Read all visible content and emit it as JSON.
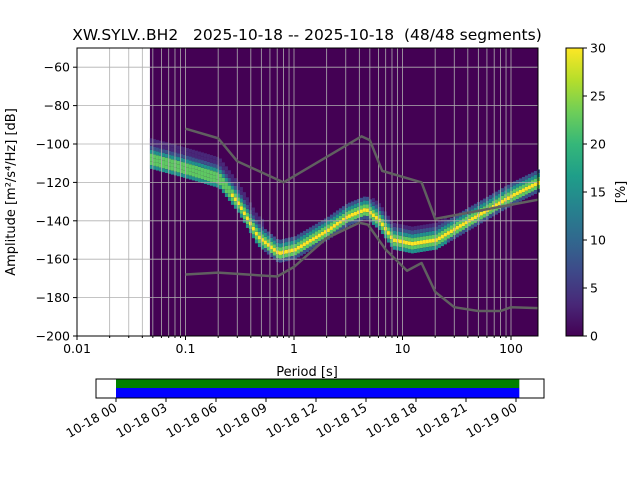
{
  "chart_data": {
    "type": "heatmap",
    "title": "XW.SYLV..BH2   2025-10-18 -- 2025-10-18  (48/48 segments)",
    "xlabel": "Period [s]",
    "ylabel": "Amplitude [m²/s⁴/Hz] [dB]",
    "xscale": "log",
    "xlim": [
      0.01,
      178
    ],
    "ylim": [
      -200,
      -50
    ],
    "xticks": [
      {
        "v": 0.01,
        "label": "0.01"
      },
      {
        "v": 0.1,
        "label": "0.1"
      },
      {
        "v": 1,
        "label": "1"
      },
      {
        "v": 10,
        "label": "10"
      },
      {
        "v": 100,
        "label": "100"
      }
    ],
    "yticks": [
      {
        "v": -60,
        "label": "−60"
      },
      {
        "v": -80,
        "label": "−80"
      },
      {
        "v": -100,
        "label": "−100"
      },
      {
        "v": -120,
        "label": "−120"
      },
      {
        "v": -140,
        "label": "−140"
      },
      {
        "v": -160,
        "label": "−160"
      },
      {
        "v": -180,
        "label": "−180"
      },
      {
        "v": -200,
        "label": "−200"
      }
    ],
    "grid": true,
    "data_period_range": [
      0.047,
      178
    ],
    "mode_curve": [
      [
        0.047,
        -108
      ],
      [
        0.1,
        -113
      ],
      [
        0.2,
        -118
      ],
      [
        0.3,
        -131
      ],
      [
        0.45,
        -148
      ],
      [
        0.7,
        -157
      ],
      [
        1,
        -155
      ],
      [
        2,
        -145
      ],
      [
        3,
        -138
      ],
      [
        4.5,
        -134
      ],
      [
        6,
        -140
      ],
      [
        8,
        -150
      ],
      [
        12,
        -152
      ],
      [
        20,
        -150
      ],
      [
        40,
        -140
      ],
      [
        100,
        -127
      ],
      [
        178,
        -120
      ]
    ],
    "noise_models": [
      {
        "name": "NHNM",
        "color": "#606060",
        "points": [
          [
            0.1,
            -92
          ],
          [
            0.2,
            -97
          ],
          [
            0.3,
            -109
          ],
          [
            0.8,
            -120
          ],
          [
            4.2,
            -96
          ],
          [
            5,
            -98
          ],
          [
            6.5,
            -114
          ],
          [
            15,
            -120
          ],
          [
            20,
            -139
          ],
          [
            178,
            -129
          ]
        ]
      },
      {
        "name": "NLNM",
        "color": "#606060",
        "points": [
          [
            0.1,
            -168
          ],
          [
            0.2,
            -167
          ],
          [
            0.7,
            -169
          ],
          [
            1,
            -164
          ],
          [
            2,
            -149
          ],
          [
            4,
            -141
          ],
          [
            4.8,
            -142
          ],
          [
            7,
            -155
          ],
          [
            11,
            -166
          ],
          [
            15,
            -162
          ],
          [
            20,
            -177
          ],
          [
            30,
            -185
          ],
          [
            50,
            -187
          ],
          [
            80,
            -187
          ],
          [
            100,
            -185
          ],
          [
            178,
            -185.5
          ]
        ]
      }
    ],
    "colorbar": {
      "label": "[%]",
      "range": [
        0,
        30
      ],
      "ticks": [
        {
          "v": 0,
          "label": "0"
        },
        {
          "v": 5,
          "label": "5"
        },
        {
          "v": 10,
          "label": "10"
        },
        {
          "v": 15,
          "label": "15"
        },
        {
          "v": 20,
          "label": "20"
        },
        {
          "v": 25,
          "label": "25"
        },
        {
          "v": 30,
          "label": "30"
        }
      ]
    },
    "timeline": {
      "ticks": [
        "10-18 00",
        "10-18 03",
        "10-18 06",
        "10-18 09",
        "10-18 12",
        "10-18 15",
        "10-18 18",
        "10-18 21",
        "10-19 00"
      ],
      "coverage_hours": [
        0,
        24.2
      ],
      "bar_colors": [
        "#008000",
        "#0000ff"
      ]
    }
  }
}
